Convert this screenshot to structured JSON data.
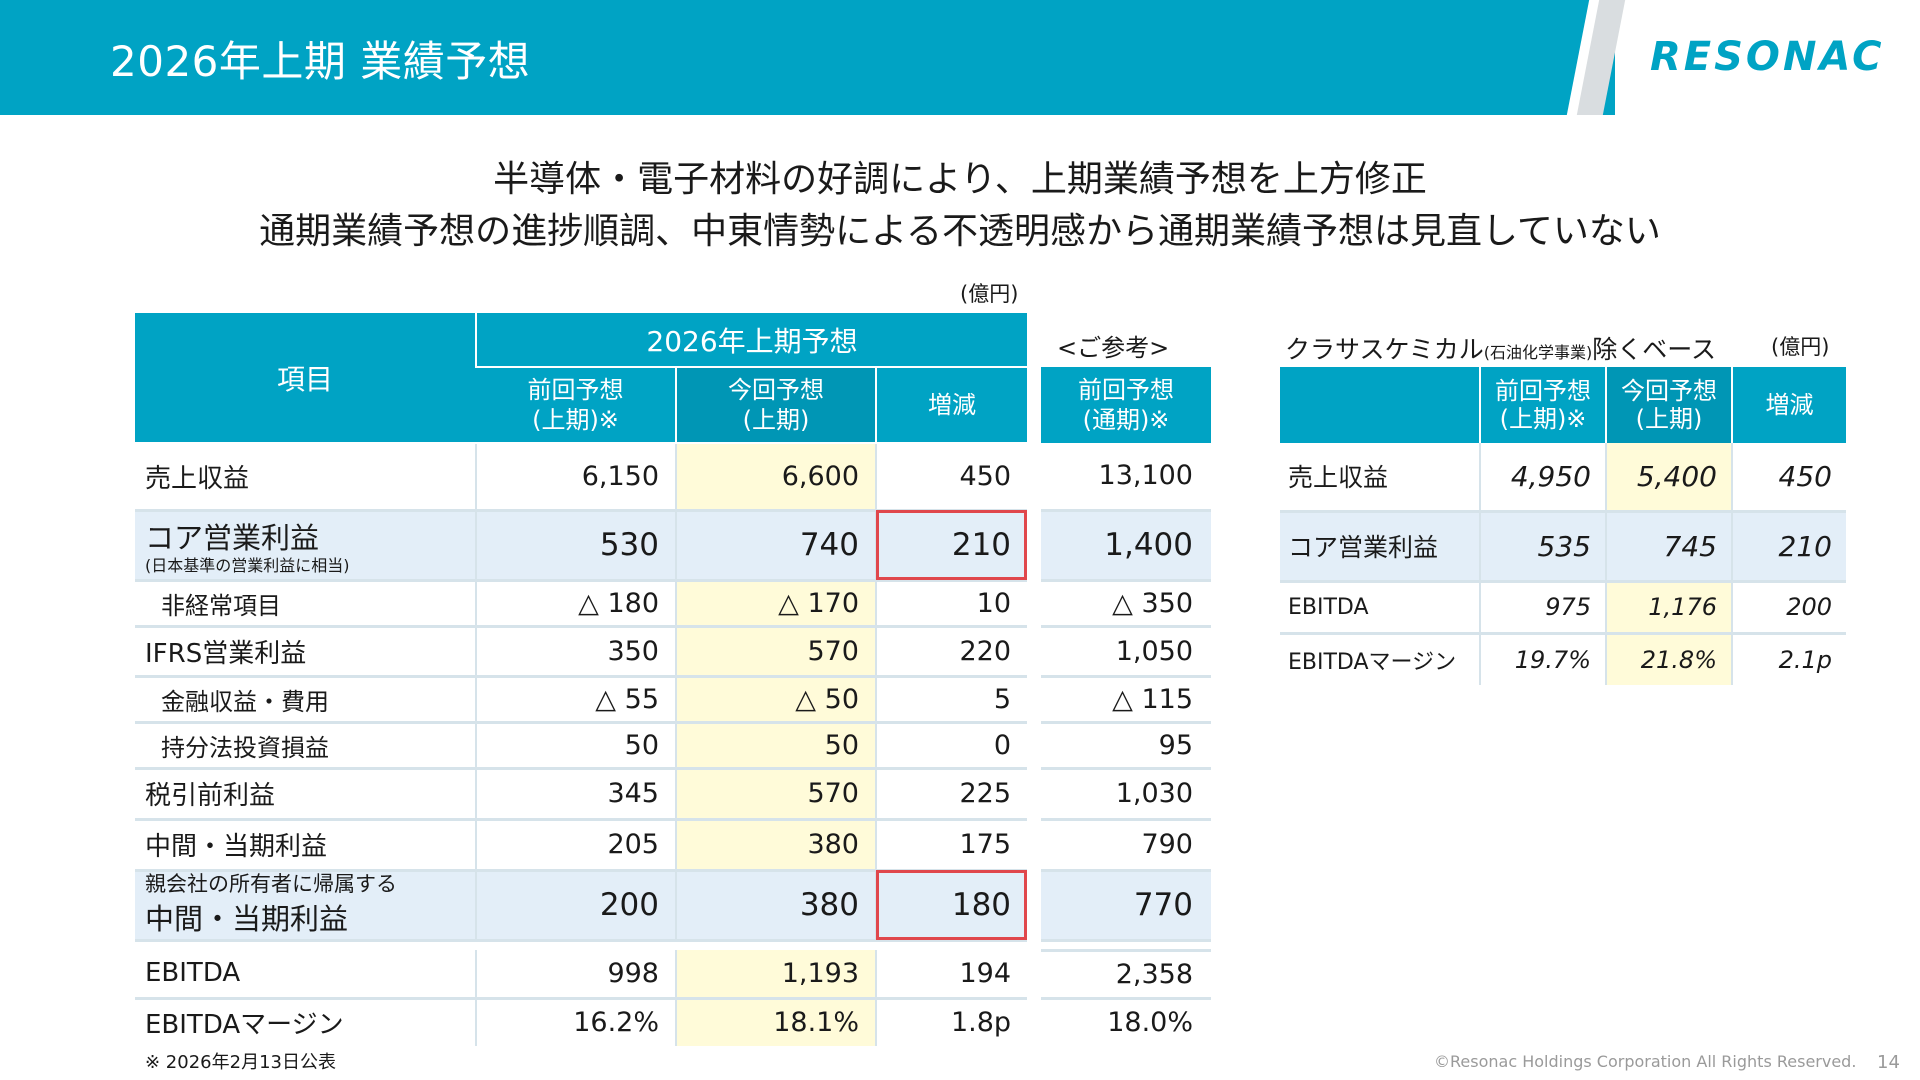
{
  "header": {
    "title": "2026年上期 業績予想",
    "logo_text": "RESONAC",
    "band_color": "#00a3c4"
  },
  "headlines": [
    "半導体・電子材料の好調により、上期業績予想を上方修正",
    "通期業績予想の進捗順調、中東情勢による不透明感から通期業績予想は見直していない"
  ],
  "main_table": {
    "unit": "(億円)",
    "reference_label": "<ご参考>",
    "item_header": "項目",
    "group_header": "2026年上期予想",
    "columns": {
      "prev_line1": "前回予想",
      "prev_line2": "(上期)※",
      "curr_line1": "今回予想",
      "curr_line2": "(上期)",
      "diff": "増減",
      "full_line1": "前回予想",
      "full_line2": "(通期)※"
    },
    "rows": [
      {
        "label": "売上収益",
        "prev": "6,150",
        "curr": "6,600",
        "diff": "450",
        "full": "13,100"
      },
      {
        "label": "コア営業利益",
        "sublabel": "(日本基準の営業利益に相当)",
        "prev": "530",
        "curr": "740",
        "diff": "210",
        "full": "1,400"
      },
      {
        "label": "非経常項目",
        "prev": "△ 180",
        "curr": "△ 170",
        "diff": "10",
        "full": "△ 350"
      },
      {
        "label": "IFRS営業利益",
        "prev": "350",
        "curr": "570",
        "diff": "220",
        "full": "1,050"
      },
      {
        "label": "金融収益・費用",
        "prev": "△ 55",
        "curr": "△ 50",
        "diff": "5",
        "full": "△ 115"
      },
      {
        "label": "持分法投資損益",
        "prev": "50",
        "curr": "50",
        "diff": "0",
        "full": "95"
      },
      {
        "label": "税引前利益",
        "prev": "345",
        "curr": "570",
        "diff": "225",
        "full": "1,030"
      },
      {
        "label": "中間・当期利益",
        "prev": "205",
        "curr": "380",
        "diff": "175",
        "full": "790"
      },
      {
        "prelabel": "親会社の所有者に帰属する",
        "label": "中間・当期利益",
        "prev": "200",
        "curr": "380",
        "diff": "180",
        "full": "770"
      },
      {
        "label": "EBITDA",
        "prev": "998",
        "curr": "1,193",
        "diff": "194",
        "full": "2,358"
      },
      {
        "label": "EBITDAマージン",
        "prev": "16.2%",
        "curr": "18.1%",
        "diff": "1.8p",
        "full": "18.0%"
      }
    ]
  },
  "klasa_table": {
    "title": "クラサスケミカル",
    "title_small": "(石油化学事業)",
    "title_suffix": "除くベース",
    "unit": "(億円)",
    "columns": {
      "prev_line1": "前回予想",
      "prev_line2": "(上期)※",
      "curr_line1": "今回予想",
      "curr_line2": "(上期)",
      "diff": "増減"
    },
    "rows": [
      {
        "label": "売上収益",
        "prev": "4,950",
        "curr": "5,400",
        "diff": "450"
      },
      {
        "label": "コア営業利益",
        "prev": "535",
        "curr": "745",
        "diff": "210"
      },
      {
        "label": "EBITDA",
        "prev": "975",
        "curr": "1,176",
        "diff": "200"
      },
      {
        "label": "EBITDAマージン",
        "prev": "19.7%",
        "curr": "21.8%",
        "diff": "2.1p"
      }
    ]
  },
  "footer": {
    "footnote": "※ 2026年2月13日公表",
    "copyright": "©Resonac Holdings Corporation  All Rights Reserved.",
    "page_number": "14"
  }
}
